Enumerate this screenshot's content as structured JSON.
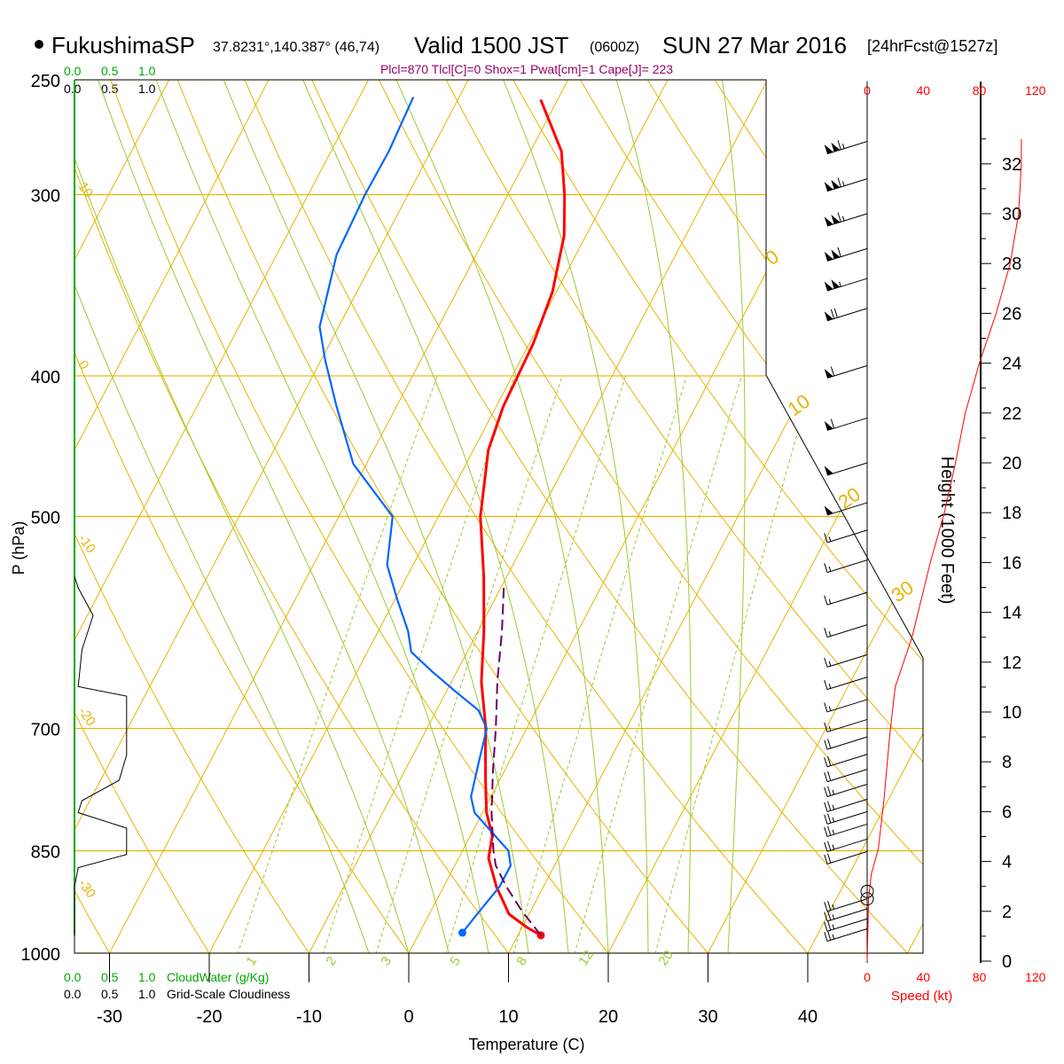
{
  "header": {
    "station": "FukushimaSP",
    "coords": "37.8231°,140.387° (46,74)",
    "valid_prefix": "Valid 1500 JST",
    "valid_zulu": "(0600Z)",
    "date": "SUN 27 Mar 2016",
    "forecast": "[24hrFcst@1527z]",
    "indices": "Plcl=870 Tlcl[C]=0 Shox=1 Pwat[cm]=1 Cape[J]= 223"
  },
  "colors": {
    "temperature": "#ff0000",
    "dewpoint": "#0066ff",
    "parcel": "#660066",
    "isotherm": "#e6b400",
    "dry_adiabat": "#e6b400",
    "moist_adiabat": "#99cc33",
    "mixing_ratio": "#99cc33",
    "cloudwater": "#00aa00",
    "wind_speed": "#ff0000",
    "title_accent": "#990066"
  },
  "chart_data": {
    "type": "line",
    "title": "FukushimaSP",
    "xlabel": "Temperature (C)",
    "ylabel": "P (hPa)",
    "y2label": "Height (1000 Feet)",
    "x_ticks": [
      "-30",
      "-20",
      "-10",
      "0",
      "10",
      "20",
      "30",
      "40"
    ],
    "pressure_levels": [
      {
        "p": 250,
        "label": "250"
      },
      {
        "p": 300,
        "label": "300"
      },
      {
        "p": 400,
        "label": "400"
      },
      {
        "p": 500,
        "label": "500"
      },
      {
        "p": 700,
        "label": "700"
      },
      {
        "p": 850,
        "label": "850"
      },
      {
        "p": 1000,
        "label": "1000"
      }
    ],
    "height_ticks": [
      "0",
      "2",
      "4",
      "6",
      "8",
      "10",
      "12",
      "14",
      "16",
      "18",
      "20",
      "22",
      "24",
      "26",
      "28",
      "30",
      "32"
    ],
    "speed_ticks": [
      "0",
      "40",
      "80",
      "120"
    ],
    "speed_axis_label": "Speed (kt)",
    "cloudwater_ticks": [
      "0.0",
      "0.5",
      "1.0"
    ],
    "cloudwater_label": "CloudWater (g/Kg)",
    "cloudiness_ticks": [
      "0.0",
      "0.5",
      "1.0"
    ],
    "cloudiness_label": "Grid-Scale Cloudiness",
    "mixing_ratio_labels": [
      "1",
      "2",
      "3",
      "5",
      "8",
      "12",
      "20"
    ],
    "isotherm_labels": [
      "10",
      "0",
      "-10",
      "-20",
      "-30"
    ],
    "isotherm_labels_right": [
      "0",
      "10",
      "20",
      "30"
    ],
    "series": [
      {
        "name": "Temperature",
        "points": [
          [
            972,
            12.3
          ],
          [
            960,
            10.5
          ],
          [
            940,
            8.0
          ],
          [
            900,
            5.3
          ],
          [
            860,
            3.0
          ],
          [
            830,
            2.2
          ],
          [
            800,
            0.4
          ],
          [
            760,
            -1.4
          ],
          [
            720,
            -3.2
          ],
          [
            700,
            -4.1
          ],
          [
            650,
            -7.0
          ],
          [
            600,
            -9.4
          ],
          [
            550,
            -12.3
          ],
          [
            500,
            -15.8
          ],
          [
            450,
            -18.5
          ],
          [
            420,
            -19.3
          ],
          [
            380,
            -19.6
          ],
          [
            350,
            -20.4
          ],
          [
            320,
            -22.2
          ],
          [
            300,
            -24.3
          ],
          [
            280,
            -26.9
          ],
          [
            258,
            -31.7
          ]
        ]
      },
      {
        "name": "Dewpoint",
        "points": [
          [
            968,
            4.3
          ],
          [
            940,
            4.8
          ],
          [
            900,
            5.6
          ],
          [
            870,
            5.6
          ],
          [
            850,
            4.6
          ],
          [
            800,
            -0.8
          ],
          [
            780,
            -2.0
          ],
          [
            740,
            -3.0
          ],
          [
            700,
            -4.0
          ],
          [
            680,
            -5.8
          ],
          [
            660,
            -9.1
          ],
          [
            640,
            -12.4
          ],
          [
            620,
            -15.6
          ],
          [
            600,
            -17.0
          ],
          [
            570,
            -19.8
          ],
          [
            540,
            -22.6
          ],
          [
            500,
            -24.6
          ],
          [
            460,
            -31.3
          ],
          [
            420,
            -36.0
          ],
          [
            390,
            -39.6
          ],
          [
            370,
            -41.9
          ],
          [
            330,
            -44.0
          ],
          [
            300,
            -44.3
          ],
          [
            280,
            -44.2
          ],
          [
            257,
            -44.6
          ]
        ]
      },
      {
        "name": "Parcel",
        "points": [
          [
            972,
            12.3
          ],
          [
            935,
            9.1
          ],
          [
            900,
            6.3
          ],
          [
            870,
            4.1
          ],
          [
            850,
            3.1
          ],
          [
            800,
            0.9
          ],
          [
            750,
            -1.1
          ],
          [
            700,
            -3.1
          ],
          [
            650,
            -5.4
          ],
          [
            600,
            -7.6
          ],
          [
            560,
            -9.7
          ]
        ]
      }
    ],
    "wind_speed_profile_kt": [
      [
        0,
        0
      ],
      [
        2.5,
        1
      ],
      [
        3.5,
        3
      ],
      [
        4.5,
        8
      ],
      [
        6.5,
        12
      ],
      [
        9,
        16
      ],
      [
        11,
        20
      ],
      [
        13,
        32
      ],
      [
        16,
        45
      ],
      [
        18,
        55
      ],
      [
        20,
        63
      ],
      [
        22,
        70
      ],
      [
        24,
        80
      ],
      [
        26,
        92
      ],
      [
        28,
        102
      ],
      [
        30,
        108
      ],
      [
        32,
        110
      ],
      [
        33,
        110
      ]
    ],
    "wind_barbs": [
      {
        "h": 1.3,
        "kt": 25
      },
      {
        "h": 1.7,
        "kt": 25
      },
      {
        "h": 2.1,
        "kt": 25
      },
      {
        "h": 2.5,
        "kt": 25
      },
      {
        "h": 4.4,
        "kt": 20
      },
      {
        "h": 4.9,
        "kt": 25
      },
      {
        "h": 5.5,
        "kt": 25
      },
      {
        "h": 6.0,
        "kt": 25
      },
      {
        "h": 6.5,
        "kt": 25
      },
      {
        "h": 7.1,
        "kt": 25
      },
      {
        "h": 7.7,
        "kt": 20
      },
      {
        "h": 8.3,
        "kt": 20
      },
      {
        "h": 9.0,
        "kt": 20
      },
      {
        "h": 9.7,
        "kt": 15
      },
      {
        "h": 10.5,
        "kt": 15
      },
      {
        "h": 11.4,
        "kt": 15
      },
      {
        "h": 12.3,
        "kt": 15
      },
      {
        "h": 13.5,
        "kt": 15
      },
      {
        "h": 14.8,
        "kt": 15
      },
      {
        "h": 16.1,
        "kt": 15
      },
      {
        "h": 17.3,
        "kt": 15
      },
      {
        "h": 18.4,
        "kt": 50
      },
      {
        "h": 20.0,
        "kt": 50
      },
      {
        "h": 21.8,
        "kt": 60
      },
      {
        "h": 23.9,
        "kt": 60
      },
      {
        "h": 26.2,
        "kt": 70
      },
      {
        "h": 27.4,
        "kt": 105
      },
      {
        "h": 28.6,
        "kt": 110
      },
      {
        "h": 30.0,
        "kt": 115
      },
      {
        "h": 31.4,
        "kt": 115
      },
      {
        "h": 32.9,
        "kt": 115
      }
    ],
    "cloudiness_profile": [
      [
        1000,
        0
      ],
      [
        975,
        0
      ],
      [
        900,
        0
      ],
      [
        873,
        0.05
      ],
      [
        855,
        0.7
      ],
      [
        820,
        0.7
      ],
      [
        800,
        0.05
      ],
      [
        785,
        0.1
      ],
      [
        760,
        0.6
      ],
      [
        730,
        0.7
      ],
      [
        700,
        0.7
      ],
      [
        665,
        0.7
      ],
      [
        655,
        0.05
      ],
      [
        618,
        0.1
      ],
      [
        585,
        0.25
      ],
      [
        560,
        0.05
      ],
      [
        550,
        0
      ]
    ]
  }
}
